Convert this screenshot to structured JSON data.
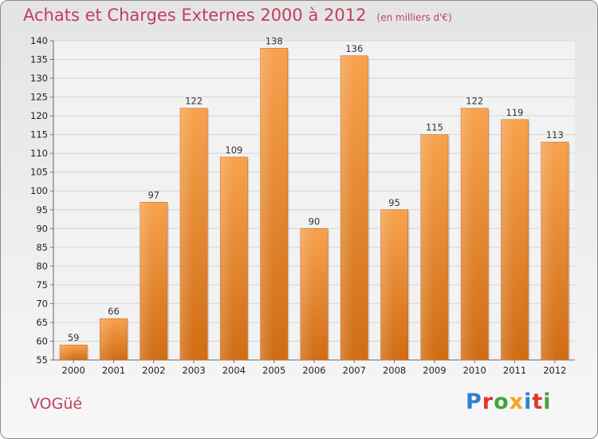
{
  "header": {
    "title": "Achats et Charges Externes 2000 à 2012",
    "subtitle": "(en milliers d'€)"
  },
  "footer": {
    "commune": "VOGüé",
    "logo_text": "Proxiti"
  },
  "colors": {
    "title": "#c0405b",
    "bar_top": "#f7a24e",
    "bar_bottom": "#d06d14",
    "logo_letters": [
      "#2f7fd0",
      "#e0362a",
      "#45a336",
      "#f2a519",
      "#2f7fd0",
      "#e0362a",
      "#45a336"
    ]
  },
  "chart_data": {
    "type": "bar",
    "title": "Achats et Charges Externes 2000 à 2012",
    "subtitle": "(en milliers d'€)",
    "categories": [
      "2000",
      "2001",
      "2002",
      "2003",
      "2004",
      "2005",
      "2006",
      "2007",
      "2008",
      "2009",
      "2010",
      "2011",
      "2012"
    ],
    "values": [
      59,
      66,
      97,
      122,
      109,
      138,
      90,
      136,
      95,
      115,
      122,
      119,
      113
    ],
    "ylim": [
      55,
      140
    ],
    "yticks": [
      55,
      60,
      65,
      70,
      75,
      80,
      85,
      90,
      95,
      100,
      105,
      110,
      115,
      120,
      125,
      130,
      135,
      140
    ],
    "grid": true,
    "legend": "none"
  }
}
